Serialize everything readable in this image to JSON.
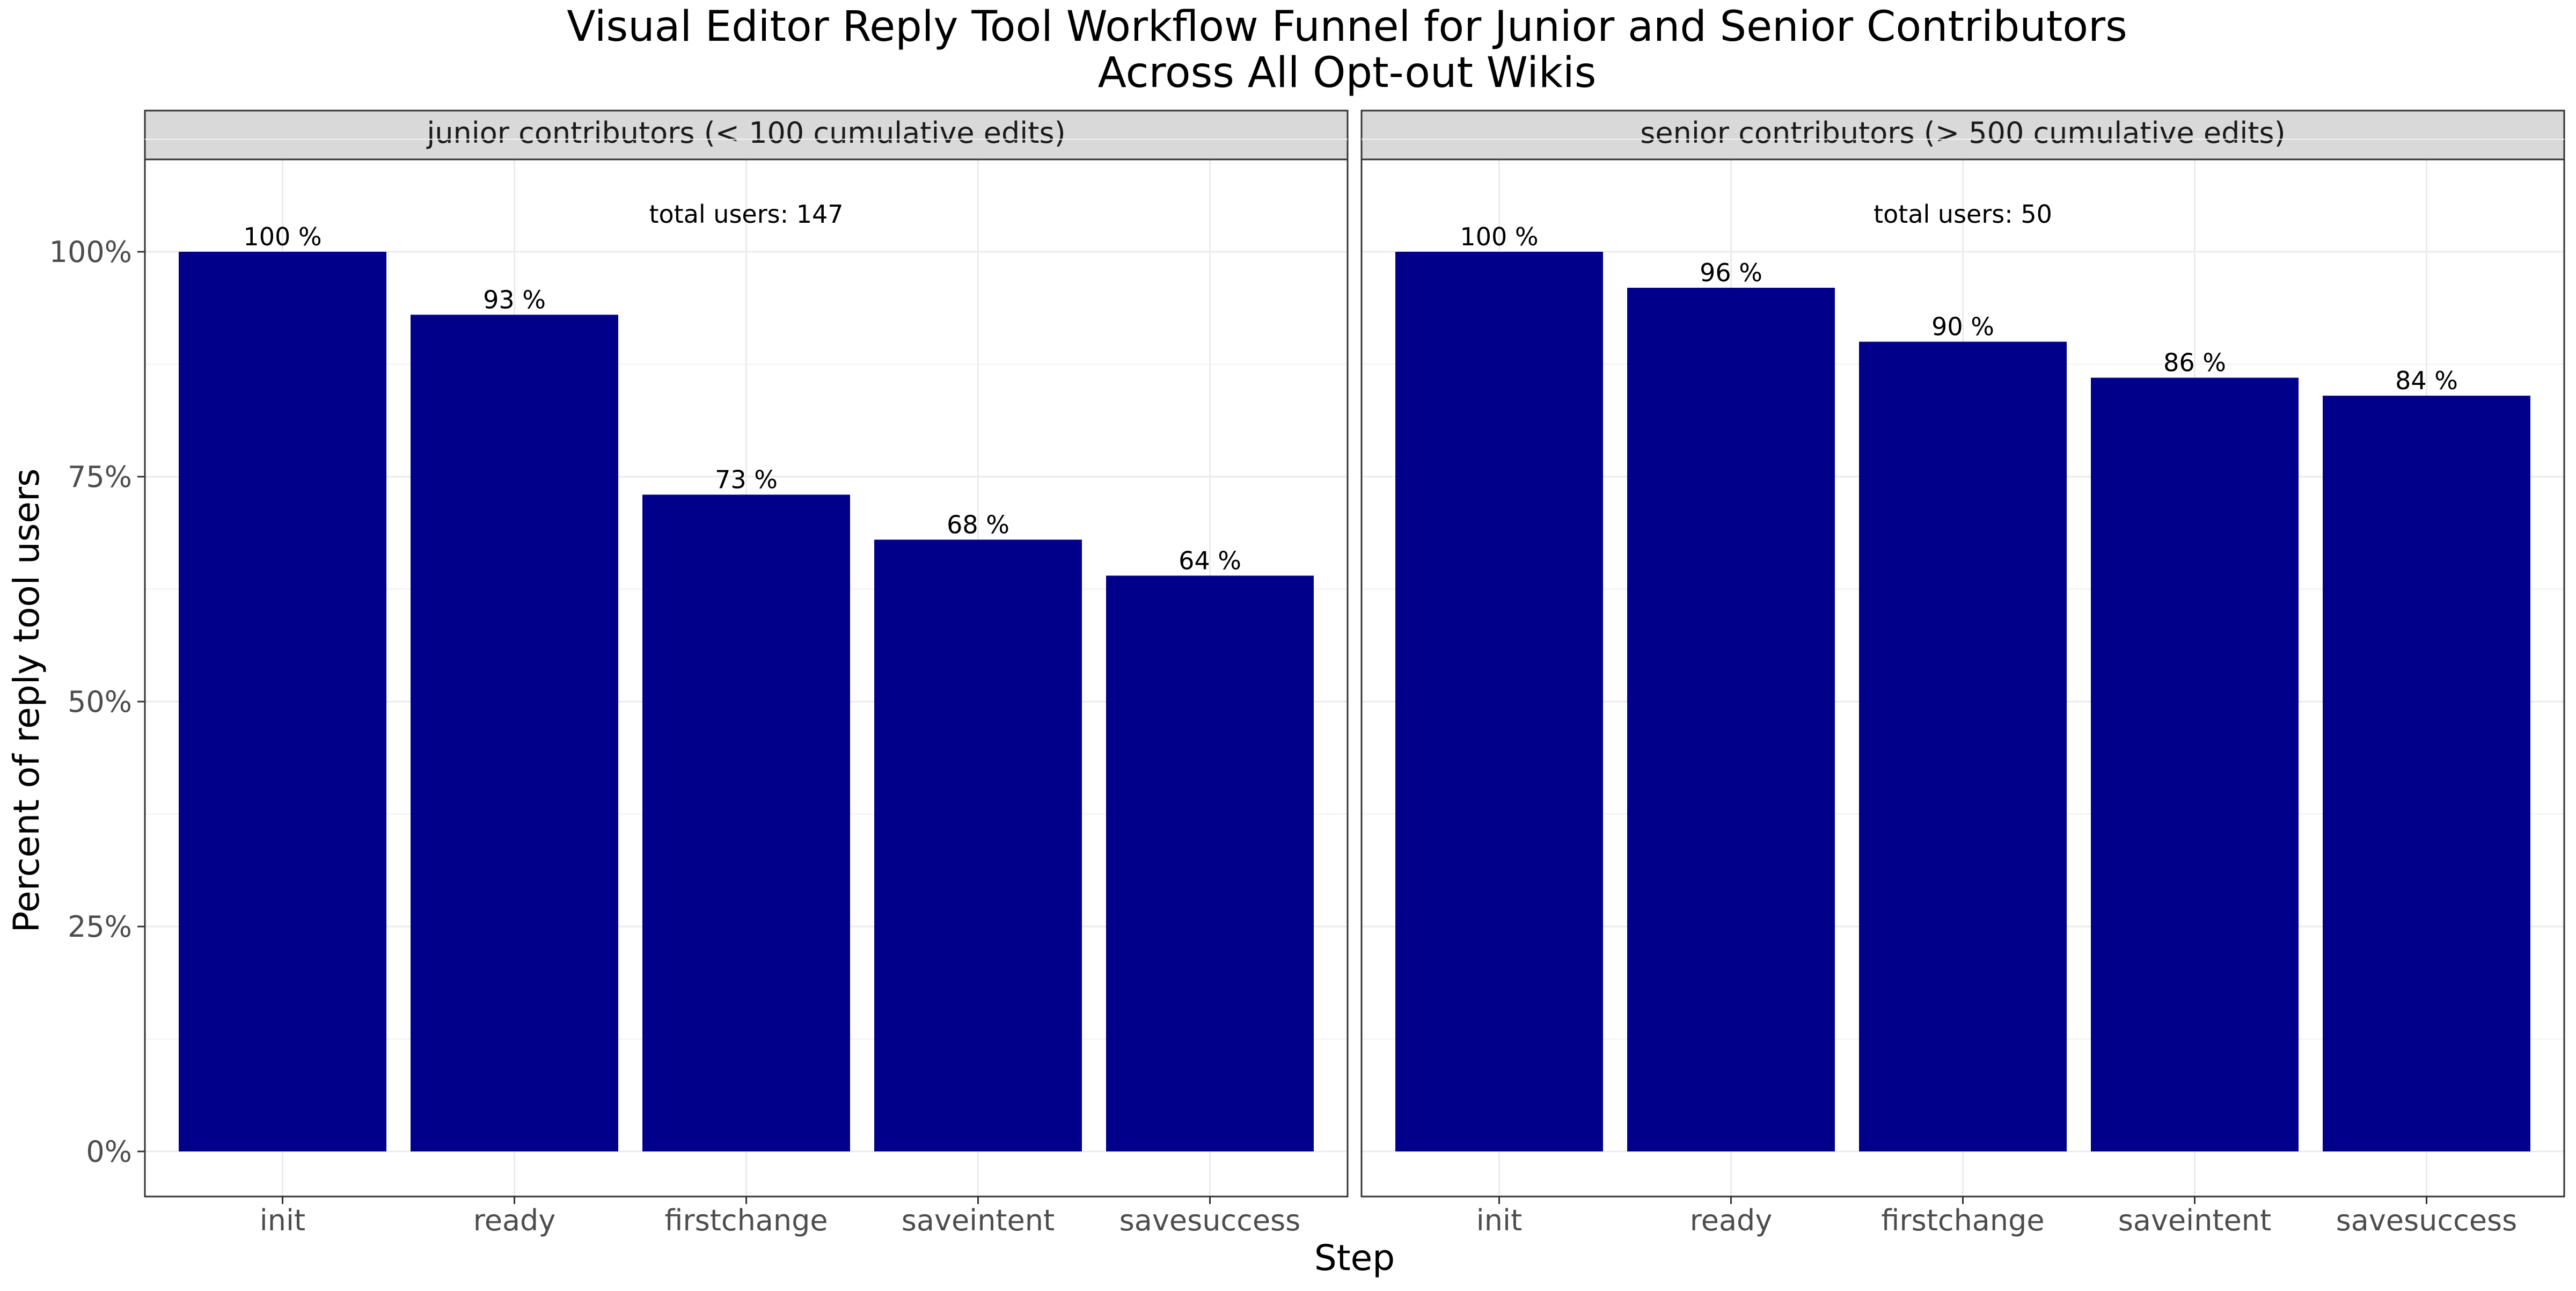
{
  "chart_data": {
    "type": "bar",
    "title": "Visual Editor Reply Tool Workflow Funnel for Junior and Senior Contributors",
    "subtitle": "Across All Opt-out Wikis",
    "xlabel": "Step",
    "ylabel": "Percent of reply tool users",
    "ylim": [
      0,
      1.1
    ],
    "y_ticks": [
      0,
      0.25,
      0.5,
      0.75,
      1.0
    ],
    "y_tick_labels": [
      "0%",
      "25%",
      "50%",
      "75%",
      "100%"
    ],
    "grid": true,
    "legend": "none",
    "bar_color": "#00008B",
    "categories": [
      "init",
      "ready",
      "firstchange",
      "saveintent",
      "savesuccess"
    ],
    "panels": [
      {
        "strip_label": "junior contributors (< 100 cumulative edits)",
        "annotation": "total users: 147",
        "values": [
          1.0,
          0.93,
          0.73,
          0.68,
          0.64
        ],
        "value_labels": [
          "100 %",
          "93 %",
          "73 %",
          "68 %",
          "64 %"
        ]
      },
      {
        "strip_label": "senior contributors (> 500 cumulative edits)",
        "annotation": "total users: 50",
        "values": [
          1.0,
          0.96,
          0.9,
          0.86,
          0.84
        ],
        "value_labels": [
          "100 %",
          "96 %",
          "90 %",
          "86 %",
          "84 %"
        ]
      }
    ]
  }
}
